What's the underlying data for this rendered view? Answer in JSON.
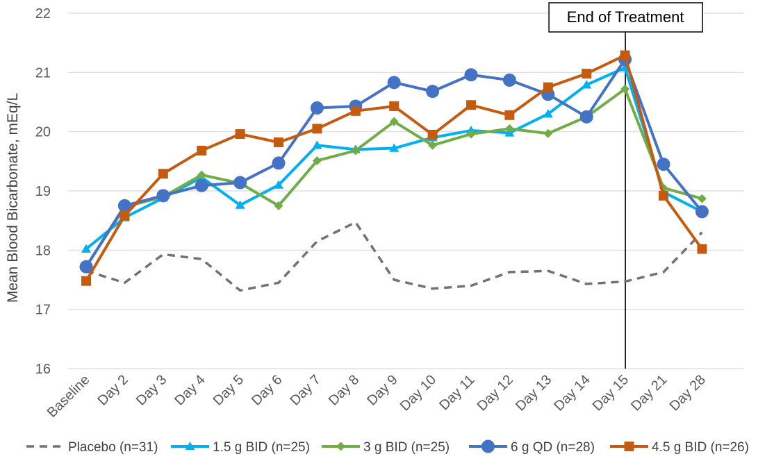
{
  "chart_data": {
    "type": "line",
    "title": "",
    "xlabel": "",
    "ylabel": "Mean Blood Bicarbonate, mEq/L",
    "ylim": [
      16,
      22
    ],
    "yticks": [
      16,
      17,
      18,
      19,
      20,
      21,
      22
    ],
    "grid": "horizontal",
    "legend_position": "bottom",
    "categories": [
      "Baseline",
      "Day 2",
      "Day 3",
      "Day 4",
      "Day 5",
      "Day 6",
      "Day 7",
      "Day 8",
      "Day 9",
      "Day 10",
      "Day 11",
      "Day 12",
      "Day 13",
      "Day 14",
      "Day 15",
      "Day 21",
      "Day 28"
    ],
    "series": [
      {
        "name": "Placebo (n=31)",
        "color": "#767171",
        "style": "dashed",
        "marker": "none",
        "values": [
          17.65,
          17.45,
          17.93,
          17.85,
          17.32,
          17.45,
          18.15,
          18.47,
          17.5,
          17.35,
          17.4,
          17.63,
          17.65,
          17.43,
          17.47,
          17.63,
          18.3
        ]
      },
      {
        "name": "1.5 g BID (n=25)",
        "color": "#00B0F0",
        "style": "solid",
        "marker": "triangle",
        "values": [
          18.02,
          18.55,
          18.88,
          19.23,
          18.76,
          19.1,
          19.77,
          19.7,
          19.72,
          19.9,
          20.02,
          19.98,
          20.3,
          20.79,
          21.08,
          18.98,
          18.65
        ]
      },
      {
        "name": "3 g BID (n=25)",
        "color": "#70AD47",
        "style": "solid",
        "marker": "diamond",
        "values": [
          17.72,
          18.73,
          18.9,
          19.27,
          19.13,
          18.75,
          19.51,
          19.68,
          20.17,
          19.77,
          19.96,
          20.05,
          19.97,
          20.25,
          20.72,
          19.05,
          18.87
        ]
      },
      {
        "name": "6 g QD (n=28)",
        "color": "#4472C4",
        "style": "solid",
        "marker": "circle",
        "values": [
          17.72,
          18.75,
          18.92,
          19.09,
          19.14,
          19.47,
          20.4,
          20.43,
          20.83,
          20.68,
          20.96,
          20.87,
          20.63,
          20.25,
          21.22,
          19.45,
          18.65
        ]
      },
      {
        "name": "4.5 g BID (n=26)",
        "color": "#C55A11",
        "style": "solid",
        "marker": "square",
        "values": [
          17.48,
          18.58,
          19.29,
          19.68,
          19.96,
          19.82,
          20.05,
          20.35,
          20.43,
          19.95,
          20.45,
          20.28,
          20.75,
          20.98,
          21.29,
          18.92,
          18.02
        ]
      }
    ],
    "annotations": [
      {
        "text": "End of Treatment",
        "category": "Day 15"
      }
    ]
  }
}
